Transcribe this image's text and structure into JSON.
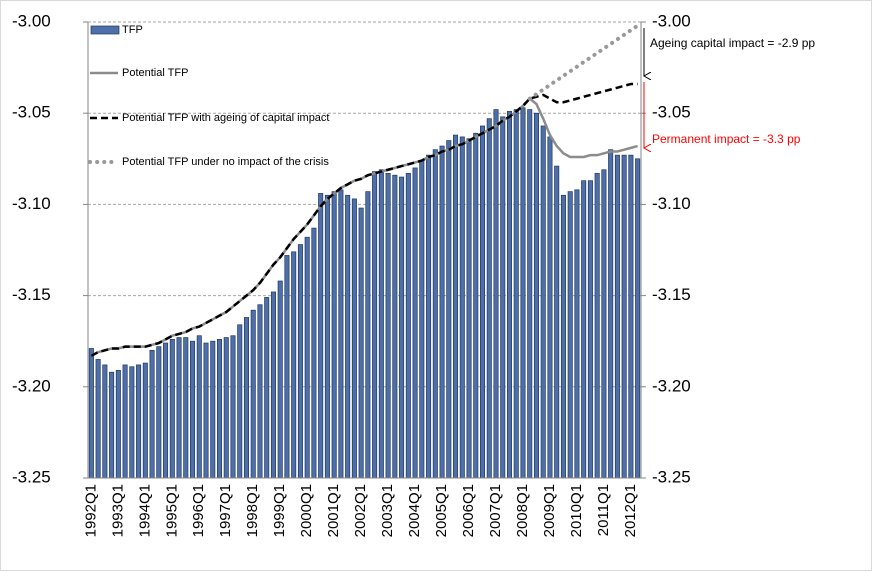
{
  "chart_data": {
    "type": "bar_line",
    "categories": [
      "1992Q1",
      null,
      null,
      null,
      "1993Q1",
      null,
      null,
      null,
      "1994Q1",
      null,
      null,
      null,
      "1995Q1",
      null,
      null,
      null,
      "1996Q1",
      null,
      null,
      null,
      "1997Q1",
      null,
      null,
      null,
      "1998Q1",
      null,
      null,
      null,
      "1999Q1",
      null,
      null,
      null,
      "2000Q1",
      null,
      null,
      null,
      "2001Q1",
      null,
      null,
      null,
      "2002Q1",
      null,
      null,
      null,
      "2003Q1",
      null,
      null,
      null,
      "2004Q1",
      null,
      null,
      null,
      "2005Q1",
      null,
      null,
      null,
      "2006Q1",
      null,
      null,
      null,
      "2007Q1",
      null,
      null,
      null,
      "2008Q1",
      null,
      null,
      null,
      "2009Q1",
      null,
      null,
      null,
      "2010Q1",
      null,
      null,
      null,
      "2011Q1",
      null,
      null,
      null,
      "2012Q1",
      null
    ],
    "series": [
      {
        "name": "TFP",
        "kind": "bar",
        "color": "#4f6fa8",
        "values": [
          -3.179,
          -3.185,
          -3.188,
          -3.192,
          -3.191,
          -3.188,
          -3.189,
          -3.188,
          -3.187,
          -3.18,
          -3.178,
          -3.176,
          -3.174,
          -3.173,
          -3.173,
          -3.175,
          -3.172,
          -3.176,
          -3.175,
          -3.174,
          -3.173,
          -3.172,
          -3.166,
          -3.162,
          -3.158,
          -3.155,
          -3.151,
          -3.148,
          -3.142,
          -3.128,
          -3.126,
          -3.122,
          -3.118,
          -3.113,
          -3.094,
          -3.095,
          -3.093,
          -3.092,
          -3.095,
          -3.097,
          -3.102,
          -3.093,
          -3.082,
          -3.081,
          -3.083,
          -3.084,
          -3.085,
          -3.083,
          -3.08,
          -3.076,
          -3.073,
          -3.07,
          -3.068,
          -3.065,
          -3.062,
          -3.063,
          -3.064,
          -3.061,
          -3.057,
          -3.053,
          -3.048,
          -3.052,
          -3.049,
          -3.048,
          -3.047,
          -3.048,
          -3.05,
          -3.057,
          -3.063,
          -3.079,
          -3.095,
          -3.093,
          -3.092,
          -3.087,
          -3.087,
          -3.083,
          -3.081,
          -3.07,
          -3.073,
          -3.073,
          -3.073,
          -3.075
        ]
      },
      {
        "name": "Potential TFP",
        "kind": "line",
        "dash": "solid",
        "color": "#8c8c8c",
        "values": [
          -3.183,
          -3.181,
          -3.18,
          -3.179,
          -3.179,
          -3.178,
          -3.178,
          -3.178,
          -3.178,
          -3.177,
          -3.176,
          -3.174,
          -3.172,
          -3.171,
          -3.17,
          -3.168,
          -3.167,
          -3.165,
          -3.163,
          -3.161,
          -3.159,
          -3.156,
          -3.153,
          -3.15,
          -3.147,
          -3.143,
          -3.138,
          -3.133,
          -3.129,
          -3.124,
          -3.119,
          -3.115,
          -3.111,
          -3.106,
          -3.101,
          -3.097,
          -3.094,
          -3.091,
          -3.089,
          -3.087,
          -3.086,
          -3.084,
          -3.083,
          -3.082,
          -3.081,
          -3.08,
          -3.079,
          -3.078,
          -3.077,
          -3.076,
          -3.074,
          -3.073,
          -3.071,
          -3.07,
          -3.068,
          -3.067,
          -3.065,
          -3.063,
          -3.061,
          -3.059,
          -3.057,
          -3.054,
          -3.052,
          -3.049,
          -3.046,
          -3.042,
          -3.045,
          -3.053,
          -3.062,
          -3.068,
          -3.072,
          -3.074,
          -3.074,
          -3.074,
          -3.073,
          -3.073,
          -3.072,
          -3.071,
          -3.071,
          -3.07,
          -3.069,
          -3.068
        ]
      },
      {
        "name": "Potential TFP with ageing of capital impact",
        "kind": "line",
        "dash": "dashed",
        "color": "#000000",
        "values": [
          -3.183,
          -3.181,
          -3.18,
          -3.179,
          -3.179,
          -3.178,
          -3.178,
          -3.178,
          -3.178,
          -3.177,
          -3.176,
          -3.174,
          -3.172,
          -3.171,
          -3.17,
          -3.168,
          -3.167,
          -3.165,
          -3.163,
          -3.161,
          -3.159,
          -3.156,
          -3.153,
          -3.15,
          -3.147,
          -3.143,
          -3.138,
          -3.133,
          -3.129,
          -3.124,
          -3.119,
          -3.115,
          -3.111,
          -3.106,
          -3.101,
          -3.097,
          -3.094,
          -3.091,
          -3.089,
          -3.087,
          -3.086,
          -3.084,
          -3.083,
          -3.082,
          -3.081,
          -3.08,
          -3.079,
          -3.078,
          -3.077,
          -3.076,
          -3.074,
          -3.073,
          -3.071,
          -3.07,
          -3.068,
          -3.067,
          -3.065,
          -3.063,
          -3.061,
          -3.059,
          -3.057,
          -3.054,
          -3.052,
          -3.049,
          -3.046,
          -3.042,
          -3.041,
          -3.04,
          -3.042,
          -3.044,
          -3.044,
          -3.043,
          -3.042,
          -3.041,
          -3.04,
          -3.039,
          -3.038,
          -3.037,
          -3.036,
          -3.035,
          -3.034,
          -3.034
        ]
      },
      {
        "name": "Potential TFP under no impact of the crisis",
        "kind": "line",
        "dash": "dotted",
        "color": "#999999",
        "values": [
          null,
          null,
          null,
          null,
          null,
          null,
          null,
          null,
          null,
          null,
          null,
          null,
          null,
          null,
          null,
          null,
          null,
          null,
          null,
          null,
          null,
          null,
          null,
          null,
          null,
          null,
          null,
          null,
          null,
          null,
          null,
          null,
          null,
          null,
          null,
          null,
          null,
          null,
          null,
          null,
          null,
          null,
          null,
          null,
          null,
          null,
          null,
          null,
          null,
          null,
          null,
          null,
          null,
          null,
          null,
          null,
          null,
          null,
          null,
          null,
          null,
          null,
          null,
          null,
          null,
          -3.042,
          -3.0395,
          -3.037,
          -3.0345,
          -3.032,
          -3.0295,
          -3.027,
          -3.0245,
          -3.022,
          -3.0195,
          -3.017,
          -3.0145,
          -3.012,
          -3.0095,
          -3.007,
          -3.0045,
          -3.002
        ]
      }
    ],
    "annotations": [
      {
        "text": "Ageing capital impact  = -2.9 pp",
        "color": "#000000"
      },
      {
        "text": "Permanent impact = -3.3 pp",
        "color": "#ff0000"
      }
    ],
    "ylim": [
      -3.25,
      -3.0
    ],
    "yticks": [
      {
        "value": -3.25,
        "label": "-3.25"
      },
      {
        "value": -3.2,
        "label": "-3.20"
      },
      {
        "value": -3.15,
        "label": "-3.15"
      },
      {
        "value": -3.1,
        "label": "-3.10"
      },
      {
        "value": -3.05,
        "label": "-3.05"
      },
      {
        "value": -3.0,
        "label": "-3.00"
      }
    ],
    "y2lim": [
      -3.25,
      -3.0
    ],
    "y2ticks": [
      {
        "value": -3.25,
        "label": "-3.25"
      },
      {
        "value": -3.2,
        "label": "-3.20"
      },
      {
        "value": -3.15,
        "label": "-3.15"
      },
      {
        "value": -3.1,
        "label": "-3.10"
      },
      {
        "value": -3.05,
        "label": "-3.05"
      },
      {
        "value": -3.0,
        "label": "-3.00"
      }
    ],
    "grid": true,
    "legend": "upper left"
  }
}
